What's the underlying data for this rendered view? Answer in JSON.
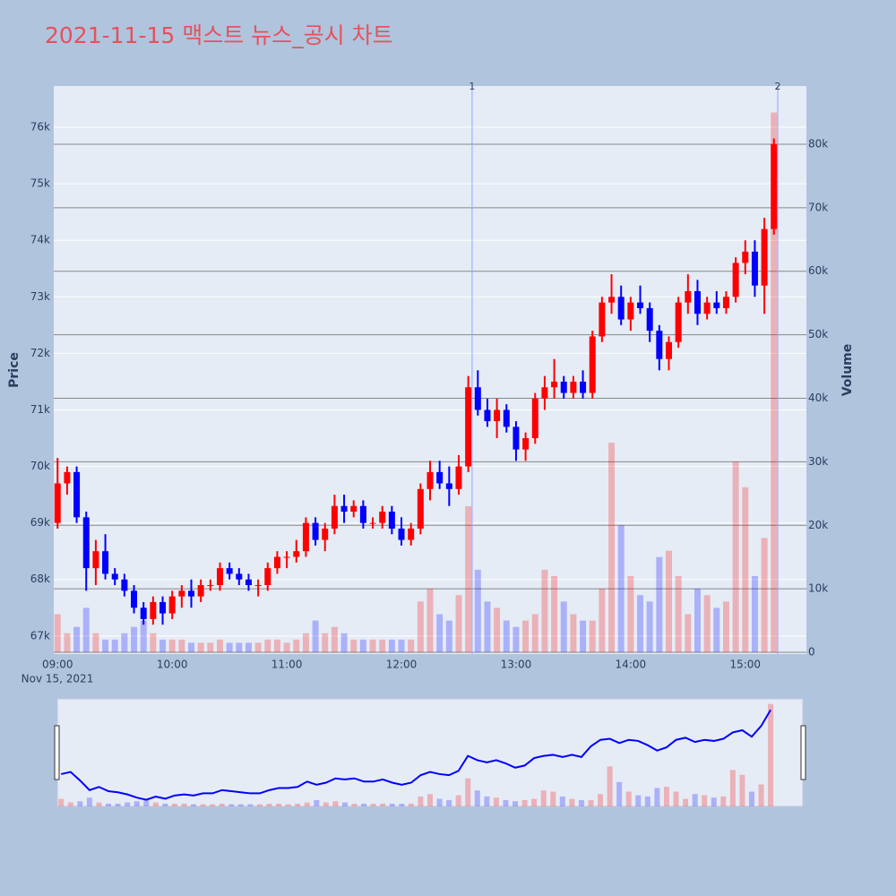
{
  "chart_data": {
    "type": "candlestick",
    "title": "2021-11-15 맥스트 뉴스_공시 차트",
    "y_title": "Price",
    "y2_title": "Volume",
    "x_date_label": "Nov 15, 2021",
    "up_color": "#ff0000",
    "down_color": "#0000ff",
    "x": [
      "09:00",
      "09:05",
      "09:10",
      "09:15",
      "09:20",
      "09:25",
      "09:30",
      "09:35",
      "09:40",
      "09:45",
      "09:50",
      "09:55",
      "10:00",
      "10:05",
      "10:10",
      "10:15",
      "10:20",
      "10:25",
      "10:30",
      "10:35",
      "10:40",
      "10:45",
      "10:50",
      "10:55",
      "11:00",
      "11:05",
      "11:10",
      "11:15",
      "11:20",
      "11:25",
      "11:30",
      "11:35",
      "11:40",
      "11:45",
      "11:50",
      "11:55",
      "12:00",
      "12:05",
      "12:10",
      "12:15",
      "12:20",
      "12:25",
      "12:30",
      "12:35",
      "12:40",
      "12:45",
      "12:50",
      "12:55",
      "13:00",
      "13:05",
      "13:10",
      "13:15",
      "13:20",
      "13:25",
      "13:30",
      "13:35",
      "13:40",
      "13:45",
      "13:50",
      "13:55",
      "14:00",
      "14:05",
      "14:10",
      "14:15",
      "14:20",
      "14:25",
      "14:30",
      "14:35",
      "14:40",
      "14:45",
      "14:50",
      "14:55",
      "15:00",
      "15:05",
      "15:10",
      "15:15"
    ],
    "open": [
      69000,
      69700,
      69900,
      69100,
      68200,
      68500,
      68100,
      68000,
      67800,
      67500,
      67300,
      67600,
      67400,
      67700,
      67800,
      67700,
      67900,
      67900,
      68200,
      68100,
      68000,
      67900,
      67900,
      68200,
      68400,
      68400,
      68500,
      69000,
      68700,
      68900,
      69300,
      69200,
      69300,
      69000,
      69000,
      69200,
      68900,
      68700,
      68900,
      69600,
      69900,
      69700,
      69600,
      70000,
      71400,
      71000,
      70800,
      71000,
      70700,
      70300,
      70500,
      71200,
      71400,
      71500,
      71300,
      71500,
      71300,
      72300,
      72900,
      73000,
      72600,
      72900,
      72800,
      72400,
      71900,
      72200,
      72900,
      73100,
      72700,
      72900,
      72800,
      73000,
      73600,
      73800,
      73200,
      74200
    ],
    "high": [
      70150,
      70000,
      70000,
      69200,
      68700,
      68800,
      68200,
      68100,
      67900,
      67600,
      67700,
      67700,
      67800,
      67900,
      68000,
      68000,
      68000,
      68300,
      68300,
      68200,
      68100,
      68000,
      68300,
      68500,
      68500,
      68700,
      69100,
      69100,
      69000,
      69500,
      69500,
      69400,
      69400,
      69100,
      69300,
      69300,
      69100,
      69000,
      69700,
      70100,
      70100,
      70000,
      70200,
      71600,
      71700,
      71200,
      71200,
      71100,
      70800,
      70600,
      71300,
      71600,
      71900,
      71600,
      71600,
      71700,
      72400,
      73000,
      73400,
      73200,
      73000,
      73200,
      72900,
      72500,
      72300,
      73000,
      73400,
      73300,
      73000,
      73100,
      73100,
      73700,
      74000,
      74000,
      74400,
      75800
    ],
    "low": [
      68900,
      69500,
      69000,
      67800,
      67900,
      68000,
      67900,
      67700,
      67400,
      67200,
      67200,
      67200,
      67300,
      67500,
      67500,
      67600,
      67800,
      67800,
      68000,
      67900,
      67800,
      67700,
      67800,
      68100,
      68200,
      68300,
      68400,
      68600,
      68500,
      68800,
      69000,
      69100,
      68900,
      68900,
      68900,
      68800,
      68600,
      68600,
      68800,
      69400,
      69600,
      69300,
      69500,
      69900,
      70900,
      70700,
      70500,
      70600,
      70100,
      70100,
      70400,
      71000,
      71200,
      71200,
      71200,
      71200,
      71200,
      72200,
      72700,
      72500,
      72400,
      72700,
      72200,
      71700,
      71700,
      72100,
      72700,
      72500,
      72600,
      72700,
      72700,
      72900,
      73400,
      73000,
      72700,
      74100
    ],
    "close": [
      69700,
      69900,
      69100,
      68200,
      68500,
      68100,
      68000,
      67800,
      67500,
      67300,
      67600,
      67400,
      67700,
      67800,
      67700,
      67900,
      67900,
      68200,
      68100,
      68000,
      67900,
      67900,
      68200,
      68400,
      68400,
      68500,
      69000,
      68700,
      68900,
      69300,
      69200,
      69300,
      69000,
      69000,
      69200,
      68900,
      68700,
      68900,
      69600,
      69900,
      69700,
      69600,
      70000,
      71400,
      71000,
      70800,
      71000,
      70700,
      70300,
      70500,
      71200,
      71400,
      71500,
      71300,
      71500,
      71300,
      72300,
      72900,
      73000,
      72600,
      72900,
      72800,
      72400,
      71900,
      72200,
      72900,
      73100,
      72700,
      72900,
      72800,
      73000,
      73600,
      73800,
      73200,
      74200,
      75700
    ],
    "volume": [
      6000,
      3000,
      4000,
      7000,
      3000,
      2000,
      2000,
      3000,
      4000,
      5000,
      3000,
      2000,
      2000,
      2000,
      1500,
      1500,
      1500,
      2000,
      1500,
      1500,
      1500,
      1500,
      2000,
      2000,
      1500,
      2000,
      3000,
      5000,
      3000,
      4000,
      3000,
      2000,
      2000,
      2000,
      2000,
      2000,
      2000,
      2000,
      8000,
      10000,
      6000,
      5000,
      9000,
      23000,
      13000,
      8000,
      7000,
      5000,
      4000,
      5000,
      6000,
      13000,
      12000,
      8000,
      6000,
      5000,
      5000,
      10000,
      33000,
      20000,
      12000,
      9000,
      8000,
      15000,
      16000,
      12000,
      6000,
      10000,
      9000,
      7000,
      8000,
      30000,
      26000,
      12000,
      18000,
      85000
    ],
    "xlim": [
      "08:58",
      "15:32"
    ],
    "xticks": [
      "09:00",
      "10:00",
      "11:00",
      "12:00",
      "13:00",
      "14:00",
      "15:00"
    ],
    "ylim": [
      66680,
      76730
    ],
    "yticks": [
      {
        "value": 67000,
        "label": "67k"
      },
      {
        "value": 68000,
        "label": "68k"
      },
      {
        "value": 69000,
        "label": "69k"
      },
      {
        "value": 70000,
        "label": "70k"
      },
      {
        "value": 71000,
        "label": "71k"
      },
      {
        "value": 72000,
        "label": "72k"
      },
      {
        "value": 73000,
        "label": "73k"
      },
      {
        "value": 74000,
        "label": "74k"
      },
      {
        "value": 75000,
        "label": "75k"
      },
      {
        "value": 76000,
        "label": "76k"
      }
    ],
    "y2lim": [
      -280,
      89170
    ],
    "y2ticks": [
      0,
      {
        "value": 10000,
        "label": "10k"
      },
      {
        "value": 20000,
        "label": "20k"
      },
      {
        "value": 30000,
        "label": "30k"
      },
      {
        "value": 40000,
        "label": "40k"
      },
      {
        "value": 50000,
        "label": "50k"
      },
      {
        "value": 60000,
        "label": "60k"
      },
      {
        "value": 70000,
        "label": "70k"
      },
      {
        "value": 80000,
        "label": "80k"
      }
    ],
    "events": [
      {
        "x": "12:37",
        "label": "1"
      },
      {
        "x": "15:17",
        "label": "2"
      }
    ]
  }
}
